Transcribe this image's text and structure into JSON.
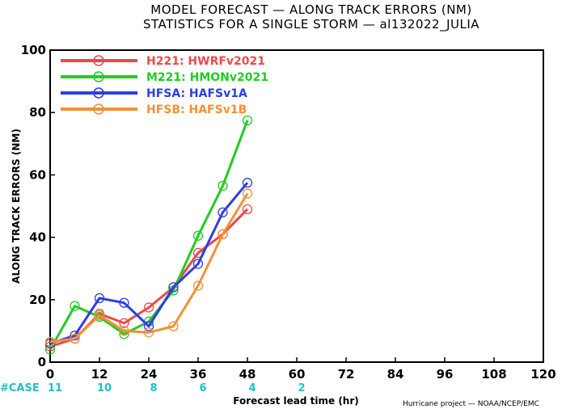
{
  "chart_data": {
    "type": "line",
    "title_line1": "MODEL FORECAST — ALONG TRACK ERRORS (NM)",
    "title_line2": "STATISTICS FOR A SINGLE STORM — al132022_JULIA",
    "xlabel": "Forecast lead time (hr)",
    "ylabel": "ALONG TRACK ERRORS (NM)",
    "xlim": [
      0,
      120
    ],
    "ylim": [
      0,
      100
    ],
    "x_ticks": [
      0,
      12,
      24,
      36,
      48,
      60,
      72,
      84,
      96,
      108,
      120
    ],
    "y_ticks": [
      0,
      20,
      40,
      60,
      80,
      100
    ],
    "legend_position": "top-left",
    "case_label": "#CASE",
    "case_counts": [
      {
        "x": 0,
        "count": "11"
      },
      {
        "x": 12,
        "count": "10"
      },
      {
        "x": 24,
        "count": "8"
      },
      {
        "x": 36,
        "count": "6"
      },
      {
        "x": 48,
        "count": "4"
      },
      {
        "x": 60,
        "count": "2"
      }
    ],
    "series": [
      {
        "name": "H221: HWRFv2021",
        "color": "#f04848",
        "x": [
          0,
          6,
          12,
          18,
          24,
          30,
          36,
          42,
          48
        ],
        "y": [
          5,
          7.5,
          15.5,
          12.5,
          17.5,
          24,
          35,
          41,
          49
        ]
      },
      {
        "name": "M221: HMONv2021",
        "color": "#22cc22",
        "x": [
          0,
          6,
          12,
          18,
          24,
          30,
          36,
          42,
          48
        ],
        "y": [
          4,
          18,
          14.5,
          9,
          13,
          23,
          40.5,
          56.5,
          77.5
        ]
      },
      {
        "name": "HFSA: HAFSv1A",
        "color": "#2d3de8",
        "x": [
          0,
          6,
          12,
          18,
          24,
          30,
          36,
          42,
          48
        ],
        "y": [
          6,
          8.5,
          20.5,
          19,
          11.5,
          24,
          31.5,
          48,
          57.5
        ]
      },
      {
        "name": "HFSB: HAFSv1B",
        "color": "#f39038",
        "x": [
          0,
          6,
          12,
          18,
          24,
          30,
          36,
          42,
          48
        ],
        "y": [
          6.5,
          7.5,
          15,
          10,
          9.5,
          11.5,
          24.5,
          41,
          54
        ]
      }
    ]
  },
  "credit": "Hurricane project — NOAA/NCEP/EMC"
}
